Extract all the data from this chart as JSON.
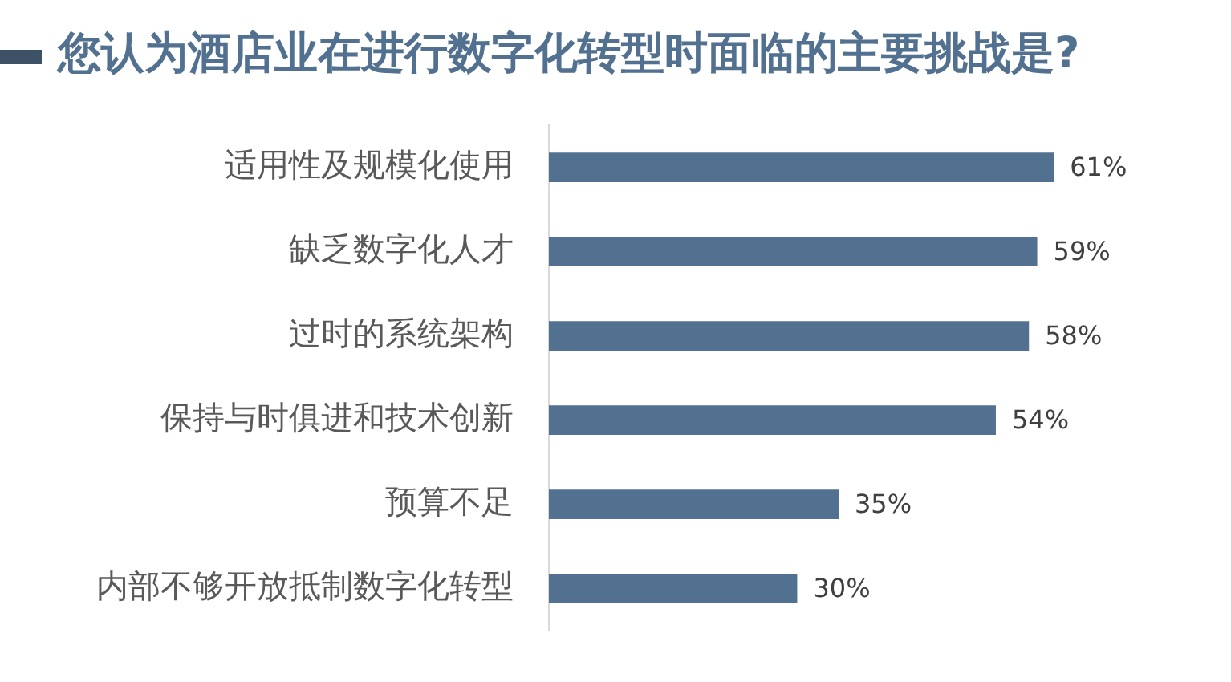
{
  "chart_data": {
    "type": "bar",
    "orientation": "horizontal",
    "title": "您认为酒店业在进行数字化转型时面临的主要挑战是?",
    "categories": [
      "适用性及规模化使用",
      "缺乏数字化人才",
      "过时的系统架构",
      "保持与时俱进和技术创新",
      "预算不足",
      "内部不够开放抵制数字化转型"
    ],
    "values": [
      61,
      59,
      58,
      54,
      35,
      30
    ],
    "value_labels": [
      "61%",
      "59%",
      "58%",
      "54%",
      "35%",
      "30%"
    ],
    "color": "#52708f",
    "grid": false,
    "legend": false,
    "tick_labels": "y"
  }
}
